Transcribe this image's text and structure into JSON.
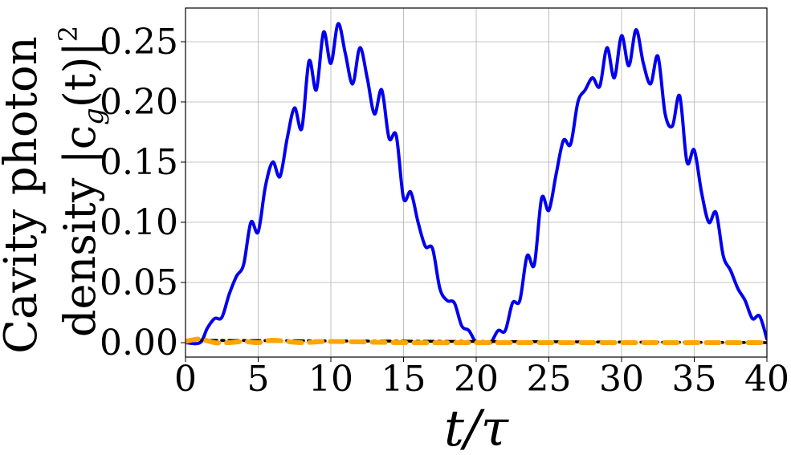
{
  "chart_data": {
    "type": "line",
    "title": "",
    "xlabel": "t/τ",
    "ylabel_line1": "Cavity photon",
    "ylabel_line2": "density |c",
    "ylabel_sub": "g",
    "ylabel_tail": "(t)|",
    "ylabel_sup": "2",
    "xlim": [
      0,
      40
    ],
    "ylim": [
      -0.012,
      0.278
    ],
    "xticks": [
      0,
      5,
      10,
      15,
      20,
      25,
      30,
      35,
      40
    ],
    "xtick_labels": [
      "0",
      "5",
      "10",
      "15",
      "20",
      "25",
      "30",
      "35",
      "40"
    ],
    "yticks": [
      0.0,
      0.05,
      0.1,
      0.15,
      0.2,
      0.25
    ],
    "ytick_labels": [
      "0.00",
      "0.05",
      "0.10",
      "0.15",
      "0.20",
      "0.25"
    ],
    "grid": true,
    "series": [
      {
        "color": "#0000ee",
        "style": "solid",
        "x": [
          0,
          1,
          1.5,
          2,
          2.5,
          3,
          3.5,
          4,
          4.5,
          5,
          5.5,
          6,
          6.5,
          7,
          7.5,
          8,
          8.5,
          9,
          9.5,
          10,
          10.5,
          11,
          11.5,
          12,
          12.5,
          13,
          13.5,
          14,
          14.5,
          15,
          15.5,
          16,
          16.5,
          17,
          17.5,
          18,
          18.5,
          19,
          19.5,
          20,
          20.5,
          21,
          21.5,
          22,
          22.5,
          23,
          23.5,
          24,
          24.5,
          25,
          25.5,
          26,
          26.5,
          27,
          27.5,
          28,
          28.5,
          29,
          29.5,
          30,
          30.5,
          31,
          31.5,
          32,
          32.5,
          33,
          33.5,
          34,
          34.5,
          35,
          35.5,
          36,
          36.5,
          37,
          37.5,
          38,
          38.5,
          39,
          39.5,
          40
        ],
        "y": [
          0.0,
          0.0,
          0.012,
          0.02,
          0.021,
          0.04,
          0.055,
          0.065,
          0.1,
          0.092,
          0.13,
          0.15,
          0.138,
          0.17,
          0.195,
          0.178,
          0.234,
          0.21,
          0.258,
          0.232,
          0.265,
          0.24,
          0.215,
          0.245,
          0.22,
          0.19,
          0.21,
          0.17,
          0.172,
          0.12,
          0.125,
          0.1,
          0.08,
          0.078,
          0.045,
          0.035,
          0.033,
          0.014,
          0.01,
          0.0,
          0.0,
          0.0,
          0.01,
          0.01,
          0.033,
          0.035,
          0.072,
          0.065,
          0.12,
          0.11,
          0.14,
          0.168,
          0.165,
          0.2,
          0.21,
          0.22,
          0.213,
          0.245,
          0.22,
          0.255,
          0.23,
          0.26,
          0.232,
          0.215,
          0.238,
          0.19,
          0.18,
          0.205,
          0.15,
          0.16,
          0.125,
          0.1,
          0.108,
          0.072,
          0.06,
          0.045,
          0.035,
          0.02,
          0.022,
          0.003
        ]
      },
      {
        "color": "#000000",
        "style": "dashdot",
        "x": [
          0,
          40
        ],
        "y": [
          0.002,
          0.0
        ]
      },
      {
        "color": "#ffa500",
        "style": "dashed",
        "x": [
          0,
          1,
          2,
          3,
          4,
          5,
          6,
          8,
          10,
          15,
          20,
          25,
          30,
          35,
          40
        ],
        "y": [
          0.001,
          0.003,
          0.0,
          0.0,
          0.001,
          0.0,
          0.002,
          0.0,
          0.001,
          0.0,
          0.0,
          0.0,
          0.0,
          0.0,
          0.0
        ]
      }
    ]
  }
}
